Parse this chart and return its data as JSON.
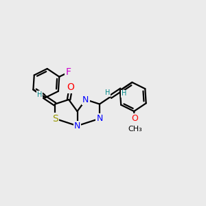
{
  "bg_color": "#ebebeb",
  "bond_color": "#000000",
  "line_width": 1.6,
  "atom_colors": {
    "N": "#0000ff",
    "O": "#ff0000",
    "S": "#999900",
    "F": "#cc00cc",
    "C": "#000000",
    "H": "#008888"
  },
  "font_size": 9,
  "font_size_small": 7,
  "xlim": [
    -2.5,
    2.8
  ],
  "ylim": [
    -1.8,
    1.5
  ]
}
